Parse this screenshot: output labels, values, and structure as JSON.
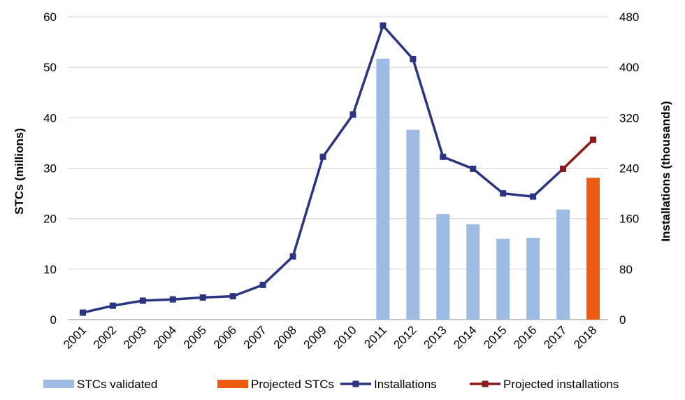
{
  "chart_data": {
    "type": "bar",
    "categories": [
      "2001",
      "2002",
      "2003",
      "2004",
      "2005",
      "2006",
      "2007",
      "2008",
      "2009",
      "2010",
      "2011",
      "2012",
      "2013",
      "2014",
      "2015",
      "2016",
      "2017",
      "2018"
    ],
    "left_axis": {
      "label": "STCs (millions)",
      "range": [
        0,
        60
      ],
      "ticks": [
        "0",
        "10",
        "20",
        "30",
        "40",
        "50",
        "60"
      ]
    },
    "right_axis": {
      "label": "Installations (thousands)",
      "range": [
        0,
        480
      ],
      "ticks": [
        "0",
        "80",
        "160",
        "240",
        "320",
        "400",
        "480"
      ]
    },
    "grid": true,
    "legend_position": "bottom",
    "series": [
      {
        "name": "STCs validated",
        "type": "bar",
        "axis": "left",
        "color": "#9dbbe3",
        "values": [
          null,
          null,
          null,
          null,
          null,
          null,
          null,
          null,
          null,
          null,
          51.7,
          37.6,
          20.9,
          18.9,
          16.0,
          16.2,
          21.8,
          null
        ]
      },
      {
        "name": "Projected STCs",
        "type": "bar",
        "axis": "left",
        "color": "#ed5a12",
        "values": [
          null,
          null,
          null,
          null,
          null,
          null,
          null,
          null,
          null,
          null,
          null,
          null,
          null,
          null,
          null,
          null,
          null,
          28.1
        ]
      },
      {
        "name": "Installations",
        "type": "line",
        "axis": "right",
        "color": "#2a3481",
        "values": [
          11,
          22,
          30,
          32,
          35,
          37,
          55,
          100,
          258,
          325,
          466,
          413,
          258,
          239,
          200,
          195,
          239,
          null
        ]
      },
      {
        "name": "Projected installations",
        "type": "line",
        "axis": "right",
        "color": "#8b1a1a",
        "values": [
          null,
          null,
          null,
          null,
          null,
          null,
          null,
          null,
          null,
          null,
          null,
          null,
          null,
          null,
          null,
          null,
          239,
          285
        ]
      }
    ]
  }
}
